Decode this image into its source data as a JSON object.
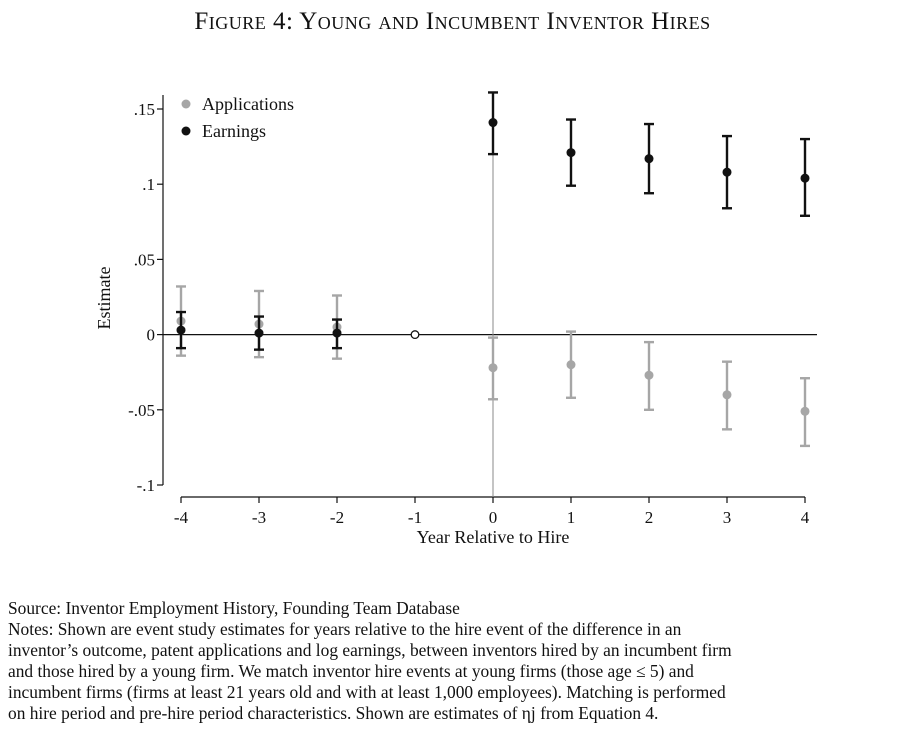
{
  "figure": {
    "title": "Figure 4: Young and Incumbent Inventor Hires"
  },
  "colors": {
    "applications": "#a6a6a6",
    "earnings": "#111111",
    "axis": "#111111",
    "reference_line": "#888888"
  },
  "chart_data": {
    "type": "scatter",
    "xlabel": "Year Relative to Hire",
    "ylabel": "Estimate",
    "xlim": [
      -4,
      4
    ],
    "ylim": [
      -0.1,
      0.15
    ],
    "x_ticks": [
      -4,
      -3,
      -2,
      -1,
      0,
      1,
      2,
      3,
      4
    ],
    "x_tick_labels": [
      "-4",
      "-3",
      "-2",
      "-1",
      "0",
      "1",
      "2",
      "3",
      "4"
    ],
    "y_ticks": [
      -0.1,
      -0.05,
      0,
      0.05,
      0.1,
      0.15
    ],
    "y_tick_labels": [
      "-.1",
      "-.05",
      "0",
      ".05",
      ".1",
      ".15"
    ],
    "grid": false,
    "legend_position": "top-left",
    "reference_lines": {
      "horizontal_y": 0,
      "vertical_x": 0
    },
    "omitted_point": {
      "x": -1,
      "y": 0
    },
    "series": [
      {
        "name": "Applications",
        "x": [
          -4,
          -3,
          -2,
          0,
          1,
          2,
          3,
          4
        ],
        "y": [
          0.009,
          0.007,
          0.005,
          -0.022,
          -0.02,
          -0.027,
          -0.04,
          -0.051
        ],
        "lower": [
          -0.014,
          -0.015,
          -0.016,
          -0.043,
          -0.042,
          -0.05,
          -0.063,
          -0.074
        ],
        "upper": [
          0.032,
          0.029,
          0.026,
          -0.002,
          0.002,
          -0.005,
          -0.018,
          -0.029
        ]
      },
      {
        "name": "Earnings",
        "x": [
          -4,
          -3,
          -2,
          0,
          1,
          2,
          3,
          4
        ],
        "y": [
          0.003,
          0.001,
          0.001,
          0.141,
          0.121,
          0.117,
          0.108,
          0.104
        ],
        "lower": [
          -0.009,
          -0.01,
          -0.009,
          0.12,
          0.099,
          0.094,
          0.084,
          0.079
        ],
        "upper": [
          0.015,
          0.012,
          0.01,
          0.161,
          0.143,
          0.14,
          0.132,
          0.13
        ]
      }
    ]
  },
  "notes": {
    "source": "Source: Inventor Employment History, Founding Team Database",
    "lines": [
      "Notes: Shown are event study estimates for years relative to the hire event of the difference in an",
      "inventor’s outcome, patent applications and log earnings, between inventors hired by an incumbent firm",
      "and those hired by a young firm. We match inventor hire events at young firms (those age ≤ 5) and",
      "incumbent firms (firms at least 21 years old and with at least 1,000 employees). Matching is performed",
      "on hire period and pre-hire period characteristics. Shown are estimates of ηj from Equation 4."
    ]
  }
}
